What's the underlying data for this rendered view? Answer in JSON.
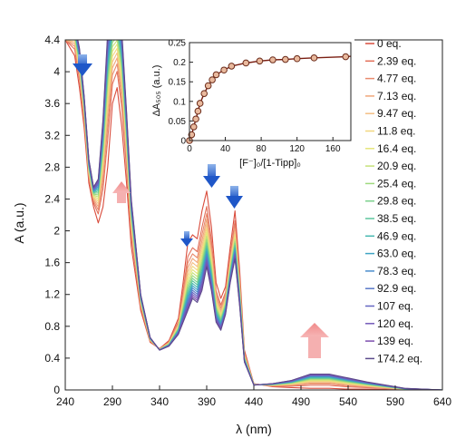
{
  "chart_data": [
    {
      "type": "line",
      "xlabel": "λ (nm)",
      "ylabel": "A (a.u.)",
      "xlim": [
        240,
        640
      ],
      "ylim": [
        0,
        4.4
      ],
      "x_ticks": [
        240,
        290,
        340,
        390,
        440,
        490,
        540,
        590,
        640
      ],
      "y_ticks": [
        0,
        0.4,
        0.8,
        1.2,
        1.6,
        2,
        2.4,
        2.8,
        3.2,
        3.6,
        4,
        4.4
      ],
      "x_tick_labels": [
        "240",
        "290",
        "340",
        "390",
        "440",
        "490",
        "540",
        "590",
        "640"
      ],
      "y_tick_labels": [
        "0",
        "0.4",
        "0.8",
        "1.2",
        "1.6",
        "2",
        "2.4",
        "2.8",
        "3.2",
        "3.6",
        "4",
        "4.4"
      ],
      "legend_position": "right",
      "series": [
        {
          "name": "0 eq.",
          "color": "#d94c3c"
        },
        {
          "name": "2.39 eq.",
          "color": "#e2705a"
        },
        {
          "name": "4.77 eq.",
          "color": "#e98a6e"
        },
        {
          "name": "7.13 eq.",
          "color": "#f0a67a"
        },
        {
          "name": "9.47 eq.",
          "color": "#f4bf84"
        },
        {
          "name": "11.8 eq.",
          "color": "#f2d77f"
        },
        {
          "name": "16.4 eq.",
          "color": "#e5e57a"
        },
        {
          "name": "20.9 eq.",
          "color": "#c5e27a"
        },
        {
          "name": "25.4 eq.",
          "color": "#9fd97e"
        },
        {
          "name": "29.8 eq.",
          "color": "#7bd08c"
        },
        {
          "name": "38.5 eq.",
          "color": "#5cc69e"
        },
        {
          "name": "46.9 eq.",
          "color": "#47b8b0"
        },
        {
          "name": "63.0 eq.",
          "color": "#3fa4c4"
        },
        {
          "name": "78.3 eq.",
          "color": "#4a8dcc"
        },
        {
          "name": "92.9 eq.",
          "color": "#5a78c8"
        },
        {
          "name": "107 eq.",
          "color": "#6566c2"
        },
        {
          "name": "120 eq.",
          "color": "#7359b9"
        },
        {
          "name": "139 eq.",
          "color": "#7d4fae"
        },
        {
          "name": "174.2 eq.",
          "color": "#5b4a8c"
        }
      ],
      "first_spectrum_0eq": {
        "x": [
          240,
          250,
          255,
          260,
          265,
          270,
          275,
          280,
          285,
          290,
          295,
          300,
          305,
          310,
          320,
          330,
          340,
          350,
          360,
          365,
          370,
          375,
          380,
          385,
          390,
          395,
          400,
          405,
          410,
          415,
          420,
          425,
          430,
          440,
          460,
          480,
          500,
          520,
          540,
          560,
          600,
          640
        ],
        "y": [
          4.4,
          4.2,
          3.8,
          3.3,
          2.6,
          2.3,
          2.1,
          2.3,
          2.8,
          3.6,
          3.8,
          3.3,
          2.6,
          1.8,
          1.0,
          0.6,
          0.52,
          0.62,
          0.9,
          1.35,
          1.85,
          1.95,
          1.9,
          2.25,
          2.5,
          2.05,
          1.35,
          1.15,
          1.3,
          1.8,
          2.25,
          1.5,
          0.5,
          0.08,
          0.04,
          0.03,
          0.02,
          0.02,
          0.01,
          0.01,
          0.0,
          0.0
        ]
      },
      "last_spectrum_174eq": {
        "x": [
          240,
          250,
          255,
          260,
          265,
          270,
          275,
          280,
          285,
          290,
          295,
          300,
          305,
          310,
          320,
          330,
          340,
          350,
          360,
          365,
          370,
          375,
          380,
          385,
          390,
          395,
          400,
          405,
          410,
          415,
          420,
          425,
          430,
          440,
          460,
          480,
          500,
          520,
          540,
          560,
          600,
          640
        ],
        "y": [
          4.4,
          4.6,
          4.3,
          3.7,
          2.9,
          2.55,
          2.65,
          3.4,
          4.5,
          4.8,
          4.8,
          4.5,
          3.5,
          2.4,
          1.2,
          0.66,
          0.5,
          0.55,
          0.7,
          0.85,
          1.0,
          1.15,
          1.1,
          1.25,
          1.55,
          1.25,
          0.85,
          0.75,
          0.95,
          1.35,
          1.65,
          1.05,
          0.35,
          0.06,
          0.08,
          0.12,
          0.2,
          0.2,
          0.15,
          0.1,
          0.02,
          0.0
        ]
      }
    },
    {
      "type": "scatter",
      "xlabel": "[F⁻]₀/[1-Tipp]₀",
      "ylabel": "ΔA₅₀₅ (a.u.)",
      "xlim": [
        0,
        180
      ],
      "ylim": [
        0,
        0.25
      ],
      "x_ticks": [
        0,
        40,
        80,
        120,
        160
      ],
      "y_ticks": [
        0,
        0.05,
        0.1,
        0.15,
        0.2,
        0.25
      ],
      "x_tick_labels": [
        "0",
        "40",
        "80",
        "120",
        "160"
      ],
      "y_tick_labels": [
        "0",
        "0.05",
        "0.1",
        "0.15",
        "0.2",
        "0.25"
      ],
      "x": [
        0,
        2.39,
        4.77,
        7.13,
        9.47,
        11.8,
        16.4,
        20.9,
        25.4,
        29.8,
        38.5,
        46.9,
        63.0,
        78.3,
        92.9,
        107,
        120,
        139,
        174.2
      ],
      "y": [
        0.0,
        0.015,
        0.035,
        0.055,
        0.075,
        0.095,
        0.12,
        0.14,
        0.155,
        0.168,
        0.18,
        0.19,
        0.198,
        0.203,
        0.206,
        0.207,
        0.209,
        0.211,
        0.214
      ],
      "fit_line": true,
      "colors": {
        "marker": "#a0522d",
        "fit": "#7a1e12"
      }
    }
  ]
}
